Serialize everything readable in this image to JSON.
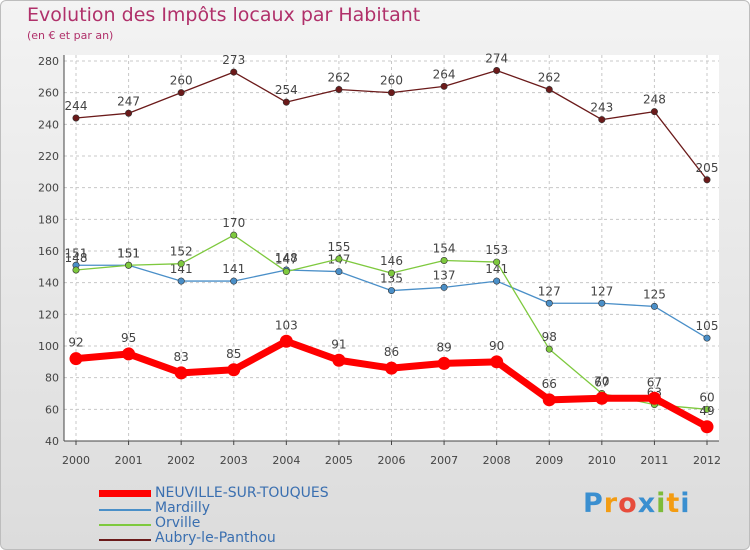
{
  "colors": {
    "title": "#b0306a",
    "axis": "#444444",
    "grid": "#c8c8c8"
  },
  "chart_data": {
    "type": "line",
    "title": "Evolution des Impôts locaux par Habitant",
    "subtitle": "(en € et par an)",
    "xlabel": "",
    "ylabel": "",
    "x": [
      "2000",
      "2001",
      "2002",
      "2003",
      "2004",
      "2005",
      "2006",
      "2007",
      "2008",
      "2009",
      "2010",
      "2011",
      "2012"
    ],
    "ylim": [
      40,
      280
    ],
    "yticks": [
      40,
      60,
      80,
      100,
      120,
      140,
      160,
      180,
      200,
      220,
      240,
      260,
      280
    ],
    "grid": true,
    "legend_position": "bottom-left",
    "series": [
      {
        "name": "Aubry-le-Panthou",
        "color": "#6b1a1a",
        "values": [
          244,
          247,
          260,
          273,
          254,
          262,
          260,
          264,
          274,
          262,
          243,
          248,
          205
        ]
      },
      {
        "name": "Mardilly",
        "color": "#4a8fc8",
        "values": [
          151,
          151,
          141,
          141,
          148,
          147,
          135,
          137,
          141,
          127,
          127,
          125,
          105
        ]
      },
      {
        "name": "Orville",
        "color": "#7ec93e",
        "values": [
          148,
          151,
          152,
          170,
          147,
          155,
          146,
          154,
          153,
          98,
          70,
          63,
          60
        ]
      },
      {
        "name": "NEUVILLE-SUR-TOUQUES",
        "color": "#ff0000",
        "values": [
          92,
          95,
          83,
          85,
          103,
          91,
          86,
          89,
          90,
          66,
          67,
          67,
          49
        ]
      }
    ],
    "legend_order": [
      "NEUVILLE-SUR-TOUQUES",
      "Mardilly",
      "Orville",
      "Aubry-le-Panthou"
    ]
  },
  "brand": {
    "letters": [
      "P",
      "r",
      "o",
      "x",
      "i",
      "t",
      "i"
    ],
    "colors": [
      "#3a8fd0",
      "#f39c12",
      "#e74c3c",
      "#3a8fd0",
      "#7dbb3a",
      "#f39c12",
      "#3a8fd0"
    ]
  }
}
